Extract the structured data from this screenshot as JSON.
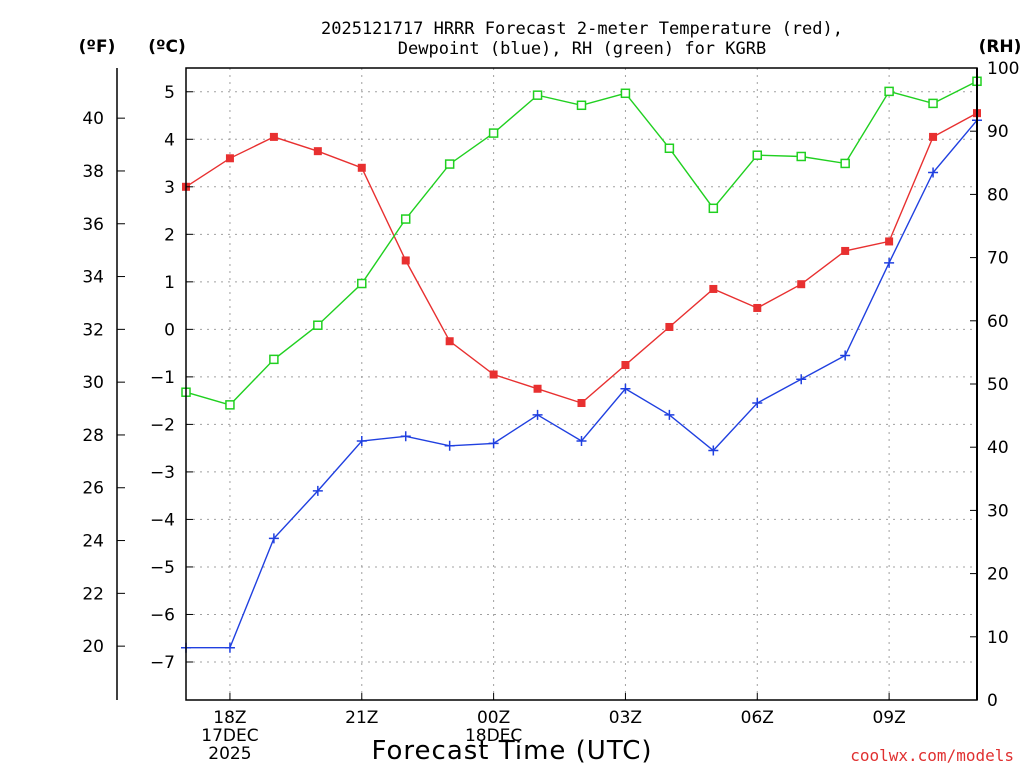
{
  "chart_data": {
    "type": "line",
    "title": "2025121717 HRRR Forecast 2-meter Temperature (red),",
    "subtitle": "Dewpoint (blue), RH (green) for KGRB",
    "xlabel": "Forecast Time (UTC)",
    "credit": "coolwx.com/models",
    "units": {
      "fahrenheit": "(ºF)",
      "celsius": "(ºC)",
      "rh": "(RH)"
    },
    "x_ticks": [
      {
        "hour": 18,
        "lines": [
          "18Z",
          "17DEC",
          "2025"
        ]
      },
      {
        "hour": 21,
        "lines": [
          "21Z"
        ]
      },
      {
        "hour": 24,
        "lines": [
          "00Z",
          "18DEC"
        ]
      },
      {
        "hour": 27,
        "lines": [
          "03Z"
        ]
      },
      {
        "hour": 30,
        "lines": [
          "06Z"
        ]
      },
      {
        "hour": 33,
        "lines": [
          "09Z"
        ]
      }
    ],
    "xlim": [
      17,
      35
    ],
    "celsius_axis": {
      "ylim": [
        -7.8,
        5.5
      ],
      "ticks": [
        -7,
        -6,
        -5,
        -4,
        -3,
        -2,
        -1,
        0,
        1,
        2,
        3,
        4,
        5
      ]
    },
    "fahrenheit_axis": {
      "ticks": [
        20,
        22,
        24,
        26,
        28,
        30,
        32,
        34,
        36,
        38,
        40
      ]
    },
    "rh_axis": {
      "ylim": [
        0,
        100
      ],
      "ticks": [
        0,
        10,
        20,
        30,
        40,
        50,
        60,
        70,
        80,
        90,
        100
      ]
    },
    "grid": true,
    "hours": [
      17,
      18,
      19,
      20,
      21,
      22,
      23,
      24,
      25,
      26,
      27,
      28,
      29,
      30,
      31,
      32,
      33,
      34,
      35
    ],
    "series": [
      {
        "name": "Temperature",
        "color": "#e83030",
        "marker": "filled-square",
        "axis": "celsius",
        "values": [
          3.0,
          3.6,
          4.05,
          3.75,
          3.4,
          1.45,
          -0.25,
          -0.95,
          -1.25,
          -1.55,
          -0.75,
          0.05,
          0.85,
          0.45,
          0.95,
          1.65,
          1.85,
          4.05,
          4.55
        ]
      },
      {
        "name": "Dewpoint",
        "color": "#2040e0",
        "marker": "plus",
        "axis": "celsius",
        "values": [
          -6.7,
          -6.7,
          -4.4,
          -3.4,
          -2.35,
          -2.25,
          -2.45,
          -2.4,
          -1.8,
          -2.35,
          -1.25,
          -1.8,
          -2.55,
          -1.55,
          -1.05,
          -0.55,
          1.4,
          3.3,
          4.4
        ]
      },
      {
        "name": "RH",
        "color": "#20d020",
        "marker": "open-square",
        "axis": "rh",
        "values": [
          48.7,
          46.7,
          53.9,
          59.3,
          65.9,
          76.1,
          84.8,
          89.7,
          95.7,
          94.1,
          96.0,
          87.3,
          77.8,
          86.2,
          86.0,
          84.9,
          96.3,
          94.4,
          97.9
        ]
      }
    ]
  }
}
